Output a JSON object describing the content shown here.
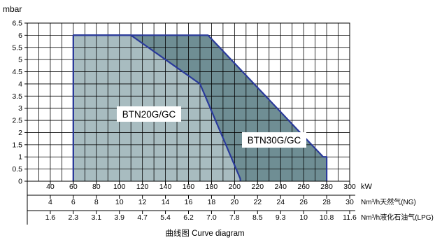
{
  "chart_data": {
    "type": "area",
    "y_unit": "mbar",
    "y_ticks": [
      "0",
      "0.5",
      "1",
      "1.5",
      "2",
      "2.5",
      "3",
      "3.5",
      "4",
      "4.5",
      "5",
      "5.5",
      "6",
      "6.5"
    ],
    "ylim": [
      0,
      6.5
    ],
    "xlim": [
      20,
      300
    ],
    "grid": true,
    "axes": [
      {
        "unit": "kW",
        "ticks": [
          "40",
          "60",
          "80",
          "100",
          "120",
          "140",
          "160",
          "180",
          "200",
          "220",
          "240",
          "260",
          "280",
          "300"
        ]
      },
      {
        "unit": "Nm³/h天然气(NG)",
        "ticks": [
          "4",
          "6",
          "8",
          "10",
          "12",
          "14",
          "16",
          "18",
          "20",
          "22",
          "24",
          "26",
          "28",
          "30"
        ]
      },
      {
        "unit": "Nm³/h液化石油气(LPG)",
        "ticks": [
          "1.6",
          "2.3",
          "3.1",
          "3.9",
          "4.7",
          "5.4",
          "6.2",
          "7.0",
          "7.8",
          "8.5",
          "9.3",
          "10",
          "10.8",
          "11.6"
        ]
      }
    ],
    "series": [
      {
        "name": "BTN30G/GC",
        "color": "#6f8e94",
        "points": [
          [
            60,
            0
          ],
          [
            60,
            6
          ],
          [
            177,
            6
          ],
          [
            277,
            1
          ],
          [
            280,
            1
          ],
          [
            280,
            0
          ]
        ]
      },
      {
        "name": "BTN20G/GC",
        "color": "#a8bcc0",
        "points": [
          [
            60,
            0
          ],
          [
            60,
            6
          ],
          [
            110,
            6
          ],
          [
            170,
            4
          ],
          [
            205,
            0.1
          ],
          [
            205,
            0
          ]
        ]
      }
    ],
    "caption": "曲线图 Curve diagram"
  }
}
